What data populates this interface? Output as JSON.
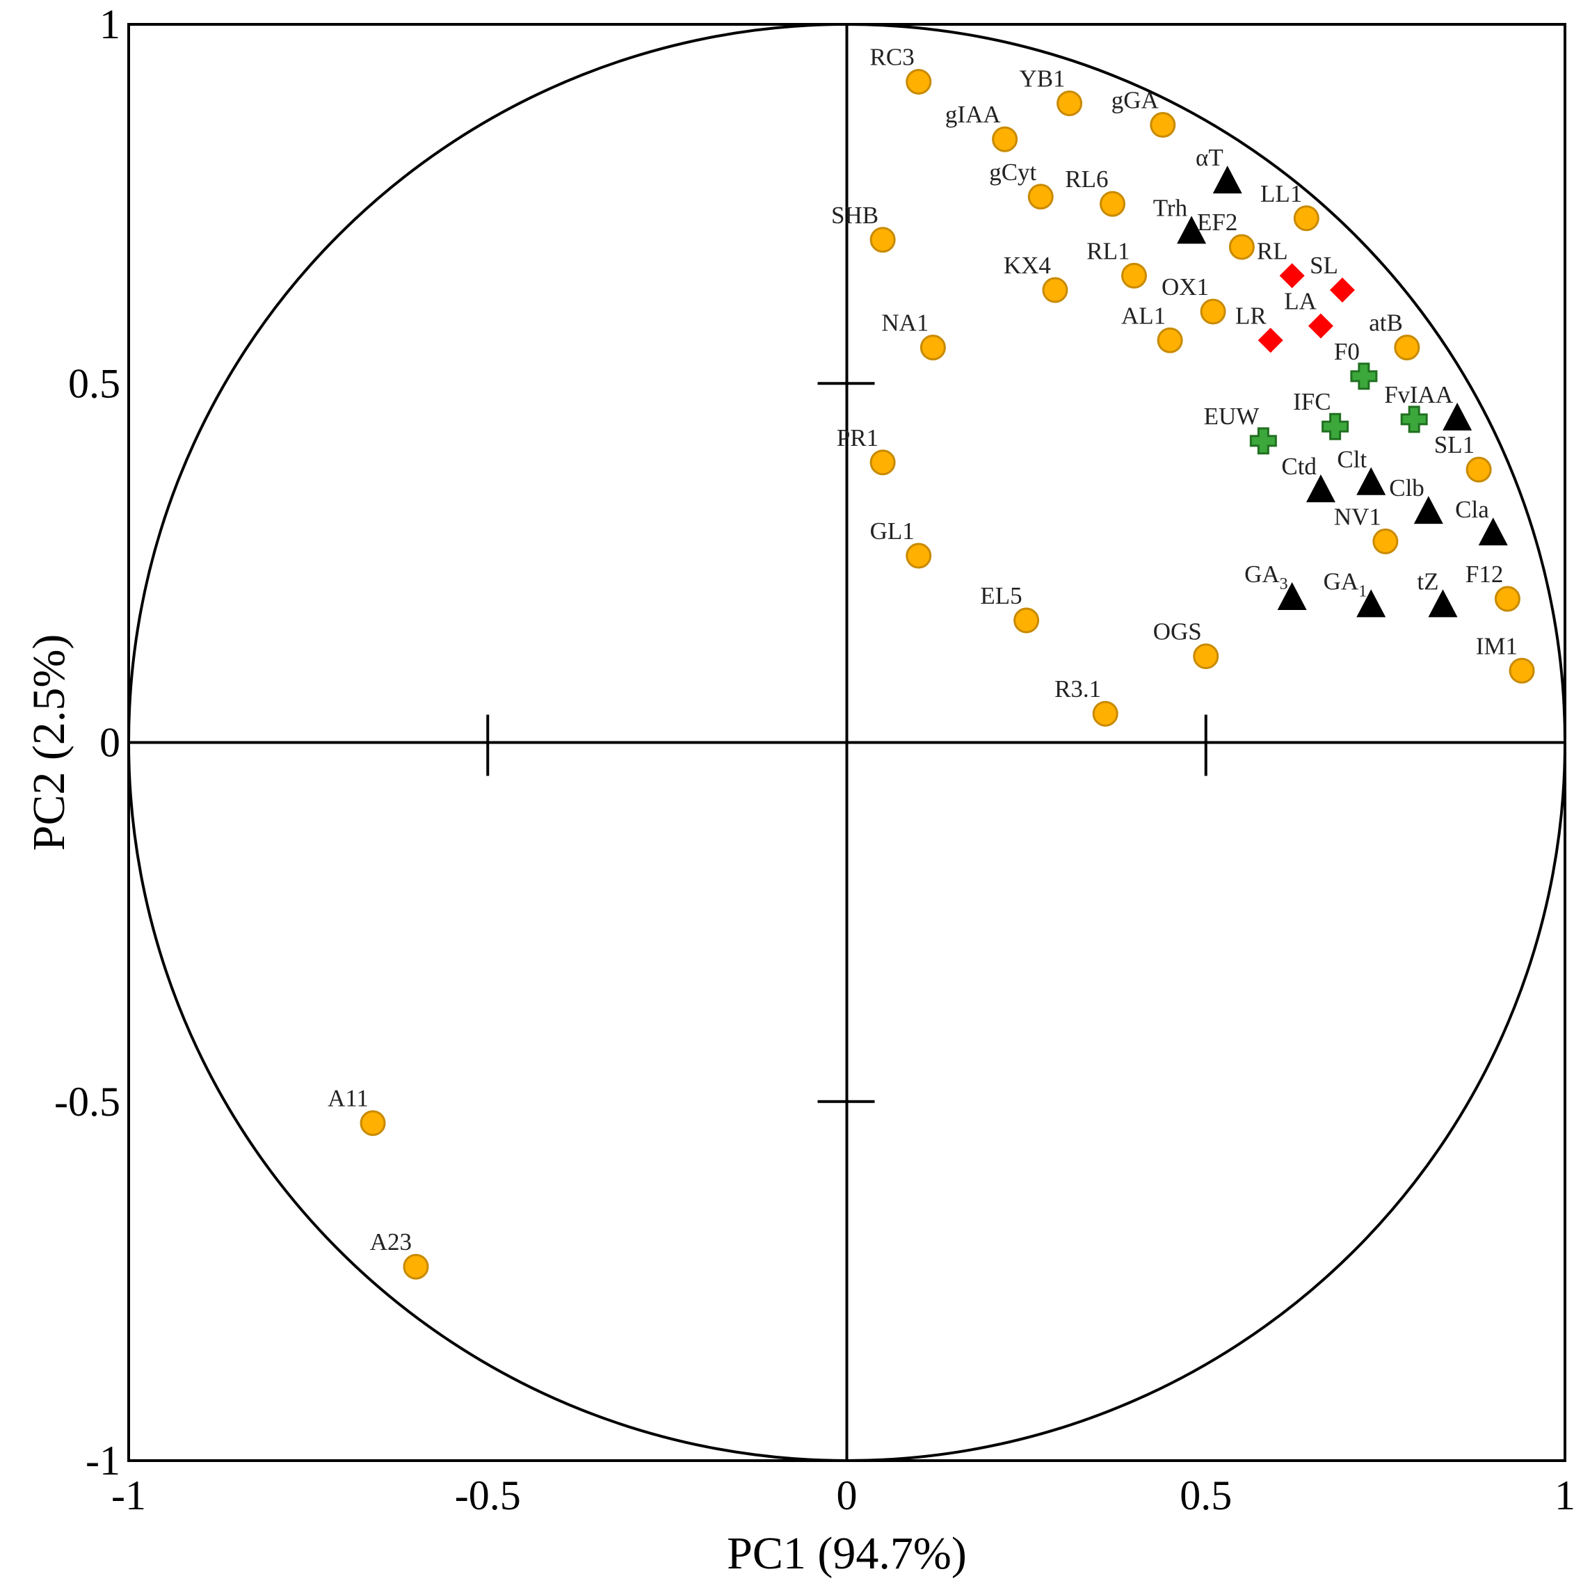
{
  "chart_data": {
    "type": "scatter",
    "title": "",
    "xlabel": "PC1 (94.7%)",
    "ylabel": "PC2 (2.5%)",
    "xlim": [
      -1,
      1
    ],
    "ylim": [
      -1,
      1
    ],
    "x_ticks": [
      {
        "value": -1,
        "label": "-1"
      },
      {
        "value": -0.5,
        "label": "-0.5"
      },
      {
        "value": 0,
        "label": "0"
      },
      {
        "value": 0.5,
        "label": "0.5"
      },
      {
        "value": 1,
        "label": "1"
      }
    ],
    "y_ticks": [
      {
        "value": 1,
        "label": "1"
      },
      {
        "value": 0.5,
        "label": "0.5"
      },
      {
        "value": 0,
        "label": "0"
      },
      {
        "value": -0.5,
        "label": "-0.5"
      },
      {
        "value": -1,
        "label": "-1"
      }
    ],
    "correlation_circle": true,
    "colors": {
      "circle_fill": "#FFB000",
      "circle_stroke": "#C88A00",
      "triangle": "#000000",
      "diamond": "#FF0000",
      "cross_fill": "#3CA83C",
      "cross_stroke": "#207020"
    },
    "series": [
      {
        "name": "circles",
        "marker": "circle",
        "points": [
          {
            "label": "RC3",
            "x": 0.1,
            "y": 0.92
          },
          {
            "label": "YB1",
            "x": 0.31,
            "y": 0.89
          },
          {
            "label": "gGA",
            "x": 0.44,
            "y": 0.86
          },
          {
            "label": "gIAA",
            "x": 0.22,
            "y": 0.84
          },
          {
            "label": "gCyt",
            "x": 0.27,
            "y": 0.76
          },
          {
            "label": "RL6",
            "x": 0.37,
            "y": 0.75
          },
          {
            "label": "LL1",
            "x": 0.64,
            "y": 0.73
          },
          {
            "label": "SHB",
            "x": 0.05,
            "y": 0.7
          },
          {
            "label": "EF2",
            "x": 0.55,
            "y": 0.69
          },
          {
            "label": "RL1",
            "x": 0.4,
            "y": 0.65
          },
          {
            "label": "KX4",
            "x": 0.29,
            "y": 0.63
          },
          {
            "label": "OX1",
            "x": 0.51,
            "y": 0.6
          },
          {
            "label": "AL1",
            "x": 0.45,
            "y": 0.56
          },
          {
            "label": "atB",
            "x": 0.78,
            "y": 0.55
          },
          {
            "label": "NA1",
            "x": 0.12,
            "y": 0.55
          },
          {
            "label": "PR1",
            "x": 0.05,
            "y": 0.39
          },
          {
            "label": "SL1",
            "x": 0.88,
            "y": 0.38
          },
          {
            "label": "NV1",
            "x": 0.75,
            "y": 0.28
          },
          {
            "label": "GL1",
            "x": 0.1,
            "y": 0.26
          },
          {
            "label": "F12",
            "x": 0.92,
            "y": 0.2
          },
          {
            "label": "EL5",
            "x": 0.25,
            "y": 0.17
          },
          {
            "label": "OGS",
            "x": 0.5,
            "y": 0.12
          },
          {
            "label": "IM1",
            "x": 0.94,
            "y": 0.1
          },
          {
            "label": "R3.1",
            "x": 0.36,
            "y": 0.04
          },
          {
            "label": "A11",
            "x": -0.66,
            "y": -0.53
          },
          {
            "label": "A23",
            "x": -0.6,
            "y": -0.73
          }
        ]
      },
      {
        "name": "triangles",
        "marker": "triangle",
        "points": [
          {
            "label": "αT",
            "x": 0.53,
            "y": 0.78
          },
          {
            "label": "Trh",
            "x": 0.48,
            "y": 0.71
          },
          {
            "label": "IAA",
            "x": 0.85,
            "y": 0.45
          },
          {
            "label": "Clt",
            "x": 0.73,
            "y": 0.36
          },
          {
            "label": "Ctd",
            "x": 0.66,
            "y": 0.35
          },
          {
            "label": "Clb",
            "x": 0.81,
            "y": 0.32
          },
          {
            "label": "Cla",
            "x": 0.9,
            "y": 0.29
          },
          {
            "label": "GA3",
            "x": 0.62,
            "y": 0.2
          },
          {
            "label": "GA1",
            "x": 0.73,
            "y": 0.19
          },
          {
            "label": "tZ",
            "x": 0.83,
            "y": 0.19
          }
        ]
      },
      {
        "name": "diamonds",
        "marker": "diamond",
        "points": [
          {
            "label": "RL",
            "x": 0.62,
            "y": 0.65
          },
          {
            "label": "SL",
            "x": 0.69,
            "y": 0.63
          },
          {
            "label": "LA",
            "x": 0.66,
            "y": 0.58
          },
          {
            "label": "LR",
            "x": 0.59,
            "y": 0.56
          }
        ]
      },
      {
        "name": "crosses",
        "marker": "cross",
        "points": [
          {
            "label": "F0",
            "x": 0.72,
            "y": 0.51
          },
          {
            "label": "Fv",
            "x": 0.79,
            "y": 0.45
          },
          {
            "label": "IFC",
            "x": 0.68,
            "y": 0.44
          },
          {
            "label": "EUW",
            "x": 0.58,
            "y": 0.42
          }
        ]
      }
    ]
  }
}
